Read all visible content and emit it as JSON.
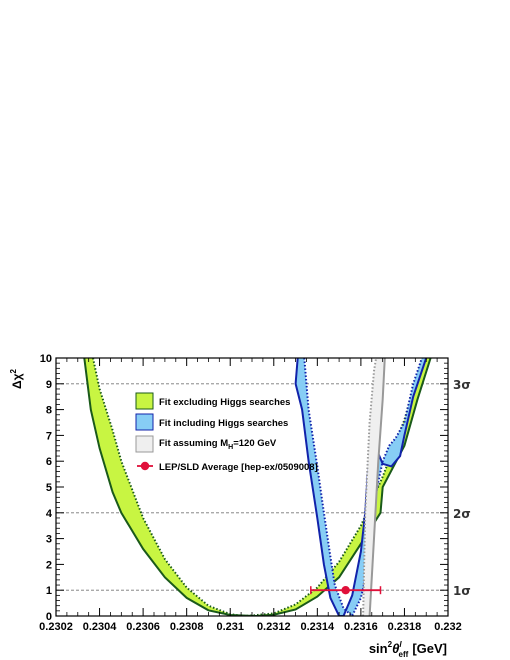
{
  "chart_data": {
    "type": "line",
    "xlabel_main": "sin",
    "xlabel_sup": "2",
    "xlabel_theta": "θ",
    "xlabel_theta_sup": "l",
    "xlabel_sub": "eff",
    "xlabel_unit": "[GeV]",
    "ylabel": "Δχ",
    "ylabel_sup": "2",
    "xlim": [
      0.2302,
      0.232
    ],
    "ylim": [
      0,
      10
    ],
    "x_ticks": [
      0.2302,
      0.2304,
      0.2306,
      0.2308,
      0.231,
      0.2312,
      0.2314,
      0.2316,
      0.2318,
      0.232
    ],
    "x_tick_labels": [
      "0.2302",
      "0.2304",
      "0.2306",
      "0.2308",
      "0.231",
      "0.2312",
      "0.2314",
      "0.2316",
      "0.2318",
      "0.232"
    ],
    "y_ticks": [
      0,
      1,
      2,
      3,
      4,
      5,
      6,
      7,
      8,
      9,
      10
    ],
    "y_tick_labels": [
      "0",
      "1",
      "2",
      "3",
      "4",
      "5",
      "6",
      "7",
      "8",
      "9",
      "10"
    ],
    "sigma_lines": [
      {
        "y": 1,
        "label": "1σ"
      },
      {
        "y": 4,
        "label": "2σ"
      },
      {
        "y": 9,
        "label": "3σ"
      }
    ],
    "bands": [
      {
        "name": "Fit excluding Higgs searches",
        "fill": "#c8f542",
        "edge": "#1a5a1a",
        "solid_curve": [
          [
            0.23033,
            10
          ],
          [
            0.23036,
            8
          ],
          [
            0.2304,
            6.5
          ],
          [
            0.23046,
            4.8
          ],
          [
            0.2305,
            4
          ],
          [
            0.2306,
            2.6
          ],
          [
            0.2307,
            1.5
          ],
          [
            0.2308,
            0.7
          ],
          [
            0.2309,
            0.22
          ],
          [
            0.231,
            0.04
          ],
          [
            0.23112,
            0
          ],
          [
            0.2312,
            0.05
          ],
          [
            0.2313,
            0.25
          ],
          [
            0.2314,
            0.75
          ],
          [
            0.2315,
            1.5
          ],
          [
            0.2316,
            2.8
          ],
          [
            0.23169,
            4
          ],
          [
            0.2317,
            5
          ],
          [
            0.2318,
            6.6
          ],
          [
            0.23186,
            8.4
          ],
          [
            0.23192,
            10
          ]
        ],
        "dotted_curve": [
          [
            0.23037,
            10
          ],
          [
            0.2304,
            8.8
          ],
          [
            0.23046,
            7.2
          ],
          [
            0.2305,
            6
          ],
          [
            0.2306,
            3.8
          ],
          [
            0.2307,
            2.2
          ],
          [
            0.2308,
            1.1
          ],
          [
            0.2309,
            0.4
          ],
          [
            0.231,
            0.07
          ],
          [
            0.23106,
            0
          ],
          [
            0.2311,
            0.02
          ],
          [
            0.2312,
            0.1
          ],
          [
            0.2313,
            0.45
          ],
          [
            0.2314,
            1.1
          ],
          [
            0.2315,
            2.1
          ],
          [
            0.2316,
            3.5
          ],
          [
            0.2317,
            5.4
          ],
          [
            0.2318,
            7.6
          ],
          [
            0.23188,
            10
          ]
        ]
      },
      {
        "name": "Fit including Higgs searches",
        "fill": "#87cdf5",
        "edge": "#1122aa",
        "solid_curve": [
          [
            0.23131,
            10
          ],
          [
            0.2313,
            9
          ],
          [
            0.23133,
            8
          ],
          [
            0.23136,
            6
          ],
          [
            0.2314,
            3.8
          ],
          [
            0.23143,
            2
          ],
          [
            0.23146,
            0.7
          ],
          [
            0.2315,
            0
          ],
          [
            0.23152,
            0
          ],
          [
            0.23156,
            0.8
          ],
          [
            0.2316,
            2.5
          ],
          [
            0.23162,
            4
          ],
          [
            0.23163,
            5.3
          ],
          [
            0.23164,
            6.3
          ],
          [
            0.23168,
            6.3
          ],
          [
            0.2317,
            5.9
          ],
          [
            0.23174,
            5.8
          ],
          [
            0.23178,
            6.2
          ],
          [
            0.2318,
            7
          ],
          [
            0.23184,
            8.5
          ],
          [
            0.2319,
            10
          ]
        ],
        "dotted_curve": [
          [
            0.23134,
            10
          ],
          [
            0.23136,
            8
          ],
          [
            0.2314,
            5.8
          ],
          [
            0.23143,
            4
          ],
          [
            0.23146,
            2.3
          ],
          [
            0.23148,
            1.2
          ],
          [
            0.23152,
            0.3
          ],
          [
            0.23156,
            0
          ],
          [
            0.2316,
            0.7
          ],
          [
            0.23163,
            1.8
          ],
          [
            0.23165,
            3
          ],
          [
            0.23167,
            4.8
          ],
          [
            0.2317,
            6
          ],
          [
            0.23173,
            6.6
          ],
          [
            0.23176,
            6.9
          ],
          [
            0.2318,
            7.5
          ],
          [
            0.23184,
            9
          ],
          [
            0.23188,
            10
          ]
        ]
      },
      {
        "name": "Fit assuming M_H=120 GeV",
        "fill": "#efefef",
        "edge": "#999999",
        "solid_curve": [
          [
            0.23164,
            0
          ],
          [
            0.23166,
            3
          ],
          [
            0.23168,
            6
          ],
          [
            0.2317,
            8.4
          ],
          [
            0.23171,
            10
          ]
        ],
        "dotted_curve": [
          [
            0.23161,
            0
          ],
          [
            0.23162,
            4
          ],
          [
            0.23164,
            7.5
          ],
          [
            0.23166,
            9.5
          ],
          [
            0.23167,
            10
          ]
        ]
      }
    ],
    "measurement": {
      "name": "LEP/SLD Average [hep-ex/0509008]",
      "x": 0.23153,
      "y": 1,
      "x_low": 0.23137,
      "x_high": 0.23169,
      "color": "#e0103a"
    },
    "legend": {
      "placement": "upper-center",
      "entries": [
        {
          "label": "Fit excluding Higgs searches",
          "kind": "box",
          "fill": "#c8f542",
          "edge": "#1a5a1a"
        },
        {
          "label": "Fit including Higgs searches",
          "kind": "box",
          "fill": "#87cdf5",
          "edge": "#1122aa"
        },
        {
          "label_main": "Fit assuming M",
          "label_sub": "H",
          "label_rest": "=120 GeV",
          "kind": "box",
          "fill": "#efefef",
          "edge": "#999999"
        },
        {
          "label": "LEP/SLD Average [hep-ex/0509008]",
          "kind": "marker",
          "color": "#e0103a"
        }
      ]
    }
  }
}
